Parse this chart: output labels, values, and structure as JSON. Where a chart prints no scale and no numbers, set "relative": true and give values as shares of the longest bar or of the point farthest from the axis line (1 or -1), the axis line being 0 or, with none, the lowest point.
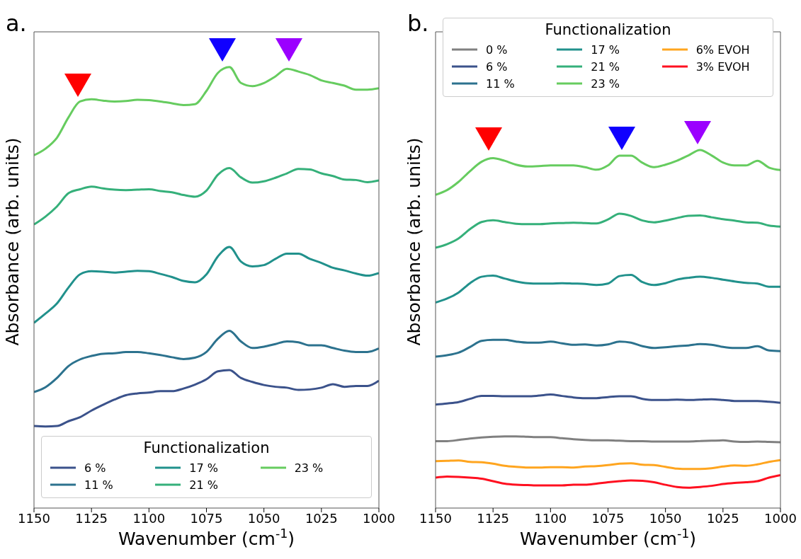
{
  "chart_data": [
    {
      "type": "line",
      "title": "a.",
      "xlabel": "Wavenumber (cm$^{-1}$)",
      "ylabel": "Absorbance (arb. units)",
      "relative": true,
      "legend": "bottom",
      "legend_title": "Functionalization",
      "xlim": [
        1150,
        1000
      ],
      "xticks": [
        1150,
        1125,
        1100,
        1075,
        1050,
        1025,
        1000
      ],
      "x": [
        1150,
        1145,
        1140,
        1135,
        1130,
        1125,
        1120,
        1115,
        1110,
        1105,
        1100,
        1095,
        1090,
        1085,
        1080,
        1075,
        1070,
        1065,
        1060,
        1055,
        1050,
        1045,
        1040,
        1035,
        1030,
        1025,
        1020,
        1015,
        1010,
        1005,
        1000
      ],
      "series": [
        {
          "name": "6 %",
          "color": "#3b528b",
          "values": [
            0.186,
            0.185,
            0.186,
            0.197,
            0.206,
            0.221,
            0.234,
            0.246,
            0.256,
            0.26,
            0.262,
            0.265,
            0.265,
            0.271,
            0.28,
            0.292,
            0.31,
            0.313,
            0.295,
            0.286,
            0.279,
            0.275,
            0.273,
            0.268,
            0.269,
            0.273,
            0.281,
            0.275,
            0.277,
            0.277,
            0.289
          ]
        },
        {
          "name": "11 %",
          "color": "#2c728e",
          "values": [
            0.263,
            0.274,
            0.295,
            0.322,
            0.337,
            0.345,
            0.35,
            0.351,
            0.354,
            0.354,
            0.351,
            0.347,
            0.342,
            0.338,
            0.341,
            0.354,
            0.384,
            0.402,
            0.378,
            0.363,
            0.366,
            0.372,
            0.378,
            0.376,
            0.369,
            0.369,
            0.363,
            0.357,
            0.354,
            0.354,
            0.362
          ]
        },
        {
          "name": "17 %",
          "color": "#21918c",
          "values": [
            0.42,
            0.441,
            0.464,
            0.5,
            0.53,
            0.537,
            0.536,
            0.534,
            0.536,
            0.538,
            0.537,
            0.531,
            0.524,
            0.515,
            0.512,
            0.53,
            0.571,
            0.592,
            0.559,
            0.548,
            0.551,
            0.565,
            0.577,
            0.577,
            0.565,
            0.556,
            0.545,
            0.539,
            0.532,
            0.527,
            0.533
          ]
        },
        {
          "name": "21 %",
          "color": "#35b07a",
          "values": [
            0.643,
            0.661,
            0.684,
            0.714,
            0.723,
            0.729,
            0.725,
            0.722,
            0.721,
            0.722,
            0.723,
            0.719,
            0.716,
            0.71,
            0.706,
            0.72,
            0.756,
            0.771,
            0.75,
            0.738,
            0.741,
            0.749,
            0.759,
            0.769,
            0.768,
            0.759,
            0.753,
            0.745,
            0.744,
            0.739,
            0.743
          ]
        },
        {
          "name": "23 %",
          "color": "#66cc5f",
          "values": [
            0.8,
            0.815,
            0.84,
            0.886,
            0.922,
            0.927,
            0.924,
            0.922,
            0.923,
            0.926,
            0.925,
            0.922,
            0.918,
            0.914,
            0.916,
            0.946,
            0.987,
            1.0,
            0.964,
            0.957,
            0.964,
            0.979,
            0.996,
            0.99,
            0.982,
            0.97,
            0.964,
            0.958,
            0.949,
            0.949,
            0.952
          ]
        }
      ]
    },
    {
      "type": "line",
      "title": "b.",
      "xlabel": "Wavenumber (cm$^{-1}$)",
      "ylabel": "Absorbance (arb. units)",
      "relative": true,
      "legend": "top",
      "legend_title": "Functionalization",
      "xlim": [
        1150,
        1000
      ],
      "xticks": [
        1150,
        1125,
        1100,
        1075,
        1050,
        1025,
        1000
      ],
      "x": [
        1150,
        1145,
        1140,
        1135,
        1130,
        1125,
        1120,
        1115,
        1110,
        1105,
        1100,
        1095,
        1090,
        1085,
        1080,
        1075,
        1070,
        1065,
        1060,
        1055,
        1050,
        1045,
        1040,
        1035,
        1030,
        1025,
        1020,
        1015,
        1010,
        1005,
        1000
      ],
      "series": [
        {
          "name": "0 %",
          "color": "#808080",
          "values": [
            0.187,
            0.187,
            0.19,
            0.194,
            0.197,
            0.199,
            0.2,
            0.2,
            0.199,
            0.198,
            0.198,
            0.195,
            0.192,
            0.19,
            0.189,
            0.189,
            0.188,
            0.187,
            0.187,
            0.186,
            0.186,
            0.186,
            0.186,
            0.187,
            0.188,
            0.189,
            0.186,
            0.185,
            0.186,
            0.185,
            0.184
          ]
        },
        {
          "name": "6 %",
          "color": "#3b528b",
          "values": [
            0.289,
            0.292,
            0.296,
            0.305,
            0.313,
            0.313,
            0.312,
            0.312,
            0.312,
            0.314,
            0.317,
            0.313,
            0.309,
            0.307,
            0.307,
            0.31,
            0.312,
            0.312,
            0.305,
            0.302,
            0.302,
            0.303,
            0.302,
            0.303,
            0.304,
            0.302,
            0.299,
            0.299,
            0.299,
            0.297,
            0.294
          ]
        },
        {
          "name": "11 %",
          "color": "#2c728e",
          "values": [
            0.423,
            0.427,
            0.434,
            0.45,
            0.467,
            0.47,
            0.47,
            0.465,
            0.462,
            0.462,
            0.465,
            0.46,
            0.456,
            0.457,
            0.454,
            0.457,
            0.465,
            0.462,
            0.452,
            0.447,
            0.449,
            0.452,
            0.454,
            0.458,
            0.456,
            0.45,
            0.447,
            0.447,
            0.452,
            0.44,
            0.438
          ]
        },
        {
          "name": "17 %",
          "color": "#21918c",
          "values": [
            0.574,
            0.585,
            0.602,
            0.628,
            0.646,
            0.649,
            0.641,
            0.633,
            0.628,
            0.627,
            0.627,
            0.628,
            0.627,
            0.626,
            0.623,
            0.627,
            0.648,
            0.651,
            0.631,
            0.623,
            0.628,
            0.638,
            0.643,
            0.646,
            0.643,
            0.638,
            0.633,
            0.629,
            0.627,
            0.618,
            0.618
          ]
        },
        {
          "name": "21 %",
          "color": "#35b07a",
          "values": [
            0.727,
            0.737,
            0.753,
            0.779,
            0.799,
            0.804,
            0.799,
            0.794,
            0.793,
            0.793,
            0.795,
            0.796,
            0.797,
            0.796,
            0.795,
            0.806,
            0.822,
            0.816,
            0.803,
            0.798,
            0.803,
            0.81,
            0.816,
            0.817,
            0.812,
            0.807,
            0.803,
            0.798,
            0.797,
            0.789,
            0.786
          ]
        },
        {
          "name": "23 %",
          "color": "#66cc5f",
          "values": [
            0.875,
            0.888,
            0.911,
            0.941,
            0.967,
            0.977,
            0.97,
            0.959,
            0.954,
            0.955,
            0.957,
            0.957,
            0.957,
            0.952,
            0.945,
            0.957,
            0.984,
            0.984,
            0.964,
            0.952,
            0.959,
            0.97,
            0.985,
            1.0,
            0.985,
            0.965,
            0.957,
            0.957,
            0.97,
            0.951,
            0.944
          ]
        },
        {
          "name": "6% EVOH",
          "color": "#ffa51f",
          "values": [
            0.131,
            0.132,
            0.133,
            0.129,
            0.128,
            0.124,
            0.118,
            0.115,
            0.113,
            0.113,
            0.114,
            0.114,
            0.113,
            0.116,
            0.117,
            0.12,
            0.124,
            0.125,
            0.121,
            0.12,
            0.115,
            0.11,
            0.109,
            0.109,
            0.111,
            0.116,
            0.119,
            0.118,
            0.122,
            0.129,
            0.134
          ]
        },
        {
          "name": "3% EVOH",
          "color": "#ff1020",
          "values": [
            0.085,
            0.088,
            0.087,
            0.085,
            0.082,
            0.075,
            0.068,
            0.065,
            0.064,
            0.063,
            0.063,
            0.063,
            0.065,
            0.065,
            0.068,
            0.072,
            0.075,
            0.077,
            0.076,
            0.072,
            0.065,
            0.059,
            0.057,
            0.059,
            0.062,
            0.067,
            0.07,
            0.072,
            0.075,
            0.085,
            0.092
          ]
        }
      ]
    }
  ]
}
